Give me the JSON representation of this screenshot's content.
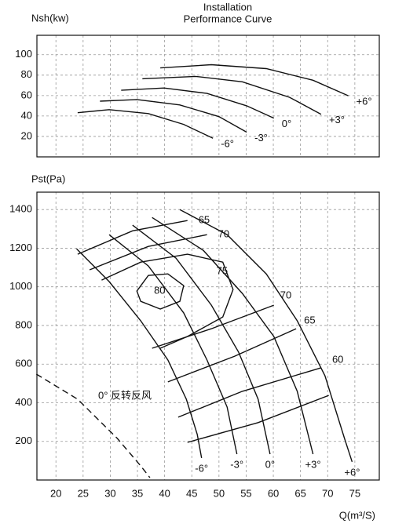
{
  "chart_data": [
    {
      "type": "line",
      "title": "Installation",
      "subtitle": "Performance Curve",
      "ylabel": "Nsh(kw)",
      "xlim": [
        16.5,
        79.5
      ],
      "ylim": [
        0,
        119
      ],
      "xticks": [
        20,
        25,
        30,
        35,
        40,
        45,
        50,
        55,
        60,
        65,
        70,
        75
      ],
      "yticks": [
        20,
        40,
        60,
        80,
        100
      ],
      "grid": true,
      "color": "#111111",
      "series": [
        {
          "name": "-6°",
          "x": [
            24.0,
            29.8,
            37.0,
            43.5,
            48.9
          ],
          "values": [
            43.2,
            46.2,
            42.4,
            31.8,
            18.2
          ]
        },
        {
          "name": "-3°",
          "x": [
            28.1,
            34.9,
            42.8,
            50.0,
            55.1
          ],
          "values": [
            54.5,
            56.1,
            50.8,
            39.4,
            24.2
          ]
        },
        {
          "name": "0°",
          "x": [
            32.0,
            39.9,
            47.8,
            55.1,
            60.1
          ],
          "values": [
            65.2,
            67.4,
            62.1,
            50.0,
            37.9
          ]
        },
        {
          "name": "+3°",
          "x": [
            35.9,
            45.7,
            54.3,
            63.0,
            68.8
          ],
          "values": [
            76.5,
            78.8,
            73.5,
            58.3,
            41.7
          ]
        },
        {
          "name": "+6°",
          "x": [
            39.2,
            48.6,
            58.7,
            67.3,
            73.8
          ],
          "values": [
            87.1,
            90.2,
            86.4,
            75.0,
            59.8
          ]
        }
      ]
    },
    {
      "type": "line",
      "ylabel": "Pst(Pa)",
      "xlabel": "Q(m³/S)",
      "xlim": [
        16.5,
        79.5
      ],
      "ylim": [
        0,
        1490
      ],
      "xticks": [
        20,
        25,
        30,
        35,
        40,
        45,
        50,
        55,
        60,
        65,
        70,
        75
      ],
      "yticks": [
        200,
        400,
        600,
        800,
        1000,
        1200,
        1400
      ],
      "grid": true,
      "color": "#111111",
      "series": [
        {
          "name": "-6°",
          "x": [
            23.8,
            29.8,
            35.6,
            40.6,
            44.0,
            46.0,
            46.8
          ],
          "values": [
            1197,
            1027,
            824,
            621,
            418,
            236,
            114
          ]
        },
        {
          "name": "-3°",
          "x": [
            29.8,
            37.0,
            43.5,
            47.8,
            51.5,
            53.3
          ],
          "values": [
            1270,
            1108,
            865,
            621,
            378,
            134
          ]
        },
        {
          "name": "0°",
          "x": [
            34.1,
            42.1,
            48.6,
            53.6,
            57.2,
            59.4
          ],
          "values": [
            1319,
            1148,
            905,
            662,
            418,
            134
          ]
        },
        {
          "name": "+3°",
          "x": [
            37.7,
            47.1,
            54.3,
            60.1,
            64.4,
            67.3
          ],
          "values": [
            1359,
            1189,
            966,
            743,
            459,
            134
          ]
        },
        {
          "name": "+6°",
          "x": [
            42.8,
            51.5,
            58.7,
            64.4,
            69.5,
            73.1,
            74.5
          ],
          "values": [
            1400,
            1270,
            1067,
            824,
            540,
            215,
            94
          ]
        }
      ],
      "efficiency_curves": [
        {
          "name": "65",
          "x": [
            24.0,
            34.1,
            44.2
          ],
          "values": [
            1169,
            1290,
            1343
          ]
        },
        {
          "name": "70",
          "x": [
            26.2,
            37.0,
            47.8
          ],
          "values": [
            1088,
            1209,
            1270
          ]
        },
        {
          "name": "75",
          "x": [
            28.4,
            35.6,
            44.2,
            50.7,
            52.6,
            50.7,
            44.2,
            39.2
          ],
          "values": [
            1035,
            1128,
            1169,
            1128,
            986,
            844,
            743,
            682
          ]
        },
        {
          "name": "80",
          "closed": true,
          "x": [
            34.9,
            37.0,
            40.6,
            43.5,
            42.8,
            39.2,
            35.6
          ],
          "values": [
            978,
            1059,
            1067,
            1006,
            925,
            885,
            925
          ]
        },
        {
          "name": "70",
          "x": [
            37.7,
            48.6,
            60.1
          ],
          "values": [
            682,
            783,
            905
          ]
        },
        {
          "name": "65",
          "x": [
            40.6,
            52.9,
            64.2
          ],
          "values": [
            508,
            641,
            783
          ]
        },
        {
          "name": "60",
          "x": [
            42.5,
            54.3,
            68.8
          ],
          "values": [
            325,
            459,
            581
          ]
        },
        {
          "name": null,
          "x": [
            44.2,
            57.2,
            70.2
          ],
          "values": [
            195,
            297,
            438
          ]
        }
      ],
      "reverse_curve": {
        "name": "0° 反转反风",
        "dashed": true,
        "x": [
          16.4,
          24.0,
          31.3,
          35.6,
          37.3
        ],
        "values": [
          548,
          418,
          215,
          73,
          12
        ]
      }
    }
  ]
}
